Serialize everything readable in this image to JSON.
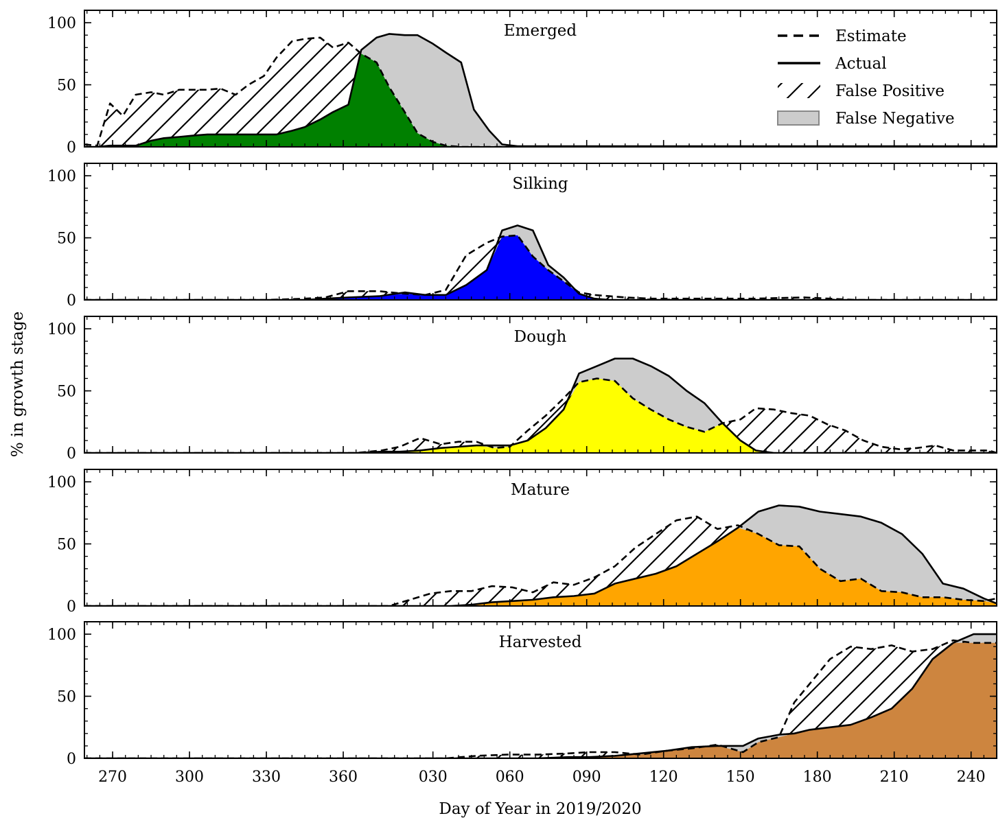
{
  "chart_data": {
    "type": "area",
    "xlabel": "Day of Year in 2019/2020",
    "ylabel": "% in growth stage",
    "xlim": [
      259,
      250
    ],
    "ylim": [
      0,
      110
    ],
    "xticks": [
      {
        "day": 270,
        "label": "270"
      },
      {
        "day": 300,
        "label": "300"
      },
      {
        "day": 330,
        "label": "330"
      },
      {
        "day": 360,
        "label": "360"
      },
      {
        "day": 395,
        "label": "030"
      },
      {
        "day": 425,
        "label": "060"
      },
      {
        "day": 455,
        "label": "090"
      },
      {
        "day": 485,
        "label": "120"
      },
      {
        "day": 515,
        "label": "150"
      },
      {
        "day": 545,
        "label": "180"
      },
      {
        "day": 575,
        "label": "210"
      },
      {
        "day": 605,
        "label": "240"
      }
    ],
    "yticks": [
      {
        "value": 0,
        "label": "0"
      },
      {
        "value": 50,
        "label": "50"
      },
      {
        "value": 100,
        "label": "100"
      }
    ],
    "legend": {
      "position": "top-right",
      "items": [
        {
          "key": "estimate",
          "label": "Estimate"
        },
        {
          "key": "actual",
          "label": "Actual"
        },
        {
          "key": "false_positive",
          "label": "False Positive"
        },
        {
          "key": "false_negative",
          "label": "False Negative"
        }
      ]
    },
    "false_negative_color": "#cccccc",
    "panels": [
      {
        "title": "Emerged",
        "color": "#008000",
        "x": [
          259,
          264,
          269,
          274,
          279,
          285,
          290,
          296,
          301,
          307,
          312,
          318,
          323,
          329,
          334,
          340,
          345,
          351,
          356,
          362,
          367,
          373,
          378,
          384,
          389,
          395,
          400,
          406,
          411,
          417,
          422,
          428,
          433,
          439,
          444,
          450,
          455,
          461,
          466,
          472,
          477,
          483,
          488,
          494,
          499,
          505,
          510,
          516,
          521,
          527,
          532,
          538,
          543,
          549,
          554,
          560,
          565,
          571,
          576,
          582,
          587,
          593,
          598,
          604,
          609,
          615
        ],
        "actual": [
          0,
          0,
          1,
          1,
          1,
          5,
          7,
          8,
          9,
          10,
          10,
          10,
          10,
          10,
          10,
          13,
          16,
          22,
          28,
          34,
          78,
          88,
          91,
          90,
          90,
          83,
          76,
          68,
          30,
          13,
          2,
          0.5,
          0.5,
          0.5,
          0.5,
          0.5,
          0.5,
          0.5,
          0.5,
          0.5,
          0.5,
          0.5,
          0.5,
          0.5,
          0.5,
          0.5,
          0.5,
          0.5,
          0.5,
          0.5,
          0.5,
          0.5,
          0.5,
          0.5,
          0.5,
          0.5,
          0.5,
          0.5,
          0.5,
          0.5,
          0.5,
          0.5,
          0.5,
          0.5,
          0.5,
          0.5
        ],
        "estimate": [
          2,
          1,
          35,
          25,
          42,
          44,
          42,
          46,
          46,
          46,
          47,
          42,
          50,
          57,
          72,
          85,
          87,
          88,
          80,
          84,
          75,
          68,
          48,
          28,
          11,
          4,
          1,
          0,
          0,
          0,
          0,
          0,
          0,
          0,
          0,
          0,
          0,
          0,
          0,
          0,
          0,
          0,
          0,
          0,
          0,
          0,
          0,
          0,
          0,
          0,
          0,
          0,
          0,
          0,
          0,
          0,
          0,
          0,
          0,
          0,
          0,
          0,
          0,
          0,
          0,
          0
        ]
      },
      {
        "title": "Silking",
        "color": "#0000ff",
        "x": [
          259,
          300,
          330,
          345,
          353,
          362,
          374,
          384,
          392,
          400,
          408,
          416,
          422,
          428,
          434,
          440,
          446,
          452,
          458,
          464,
          470,
          480,
          500,
          520,
          540,
          560,
          580,
          600,
          615
        ],
        "actual": [
          0,
          0,
          0,
          0,
          1,
          2,
          3,
          6,
          4,
          4,
          12,
          24,
          56,
          60,
          56,
          28,
          18,
          5,
          1,
          0,
          0,
          0,
          0,
          0,
          0,
          0,
          0,
          0,
          0
        ],
        "estimate": [
          0,
          0,
          0,
          1,
          2,
          7,
          7,
          5,
          4,
          8,
          36,
          46,
          51,
          52,
          35,
          24,
          15,
          6,
          4,
          3,
          2,
          1,
          1,
          1,
          2,
          0,
          0,
          0,
          0
        ]
      },
      {
        "title": "Dough",
        "color": "#ffff00",
        "x": [
          259,
          360,
          365,
          375,
          382,
          390,
          398,
          405,
          412,
          419,
          425,
          432,
          439,
          446,
          452,
          459,
          466,
          473,
          480,
          487,
          494,
          501,
          508,
          515,
          521,
          528,
          535,
          542,
          549,
          556,
          563,
          570,
          577,
          584,
          591,
          598,
          605,
          612,
          615
        ],
        "actual": [
          0,
          0,
          0,
          1,
          1,
          2,
          4,
          5,
          6,
          6,
          6,
          10,
          20,
          35,
          64,
          70,
          76,
          76,
          70,
          62,
          50,
          40,
          24,
          10,
          2,
          0,
          0,
          0,
          0,
          0,
          0,
          0,
          0,
          0,
          0,
          0,
          0,
          0,
          0
        ],
        "estimate": [
          0,
          0,
          0,
          2,
          5,
          12,
          7,
          9,
          9,
          4,
          5,
          18,
          30,
          44,
          57,
          60,
          58,
          44,
          35,
          27,
          21,
          17,
          24,
          27,
          36,
          35,
          32,
          30,
          23,
          18,
          10,
          5,
          3,
          4,
          6,
          2,
          2,
          2,
          0
        ]
      },
      {
        "title": "Mature",
        "color": "#ffa500",
        "x": [
          259,
          370,
          378,
          386,
          394,
          402,
          410,
          418,
          426,
          434,
          442,
          450,
          458,
          466,
          474,
          482,
          490,
          498,
          506,
          514,
          522,
          530,
          538,
          546,
          554,
          562,
          570,
          578,
          586,
          594,
          602,
          610,
          615
        ],
        "actual": [
          0,
          0,
          0,
          0,
          0,
          0,
          1,
          3,
          4,
          5,
          7,
          8,
          10,
          18,
          22,
          26,
          32,
          42,
          52,
          63,
          76,
          81,
          80,
          76,
          74,
          72,
          67,
          58,
          42,
          18,
          14,
          6,
          2
        ],
        "estimate": [
          0,
          0,
          0,
          5,
          10,
          12,
          12,
          16,
          15,
          11,
          19,
          17,
          23,
          32,
          47,
          58,
          69,
          72,
          62,
          65,
          58,
          49,
          48,
          30,
          20,
          22,
          12,
          11,
          7,
          7,
          5,
          4,
          6
        ]
      },
      {
        "title": "Harvested",
        "color": "#cd853f",
        "x": [
          259,
          400,
          412,
          424,
          436,
          448,
          456,
          466,
          476,
          486,
          496,
          506,
          516,
          522,
          530,
          536,
          542,
          550,
          558,
          566,
          574,
          582,
          590,
          598,
          606,
          615
        ],
        "actual": [
          0,
          0,
          0,
          0,
          0,
          1,
          1,
          2,
          4,
          6,
          9,
          10,
          10,
          16,
          19,
          20,
          23,
          25,
          27,
          33,
          40,
          56,
          80,
          93,
          100,
          100
        ],
        "estimate": [
          0,
          0,
          2,
          3,
          3,
          4,
          5,
          5,
          3,
          6,
          8,
          11,
          5,
          13,
          17,
          45,
          60,
          80,
          90,
          88,
          91,
          86,
          88,
          95,
          93,
          93
        ]
      }
    ]
  }
}
